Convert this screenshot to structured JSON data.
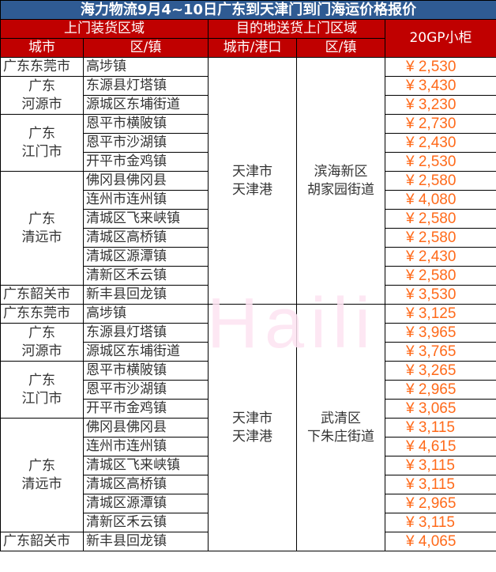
{
  "title": "海力物流9月4~10日广东到天津门到门海运价格报价",
  "headers": {
    "pickup": "上门装货区域",
    "dest": "目的地送货上门区域",
    "price": "20GP小柜",
    "city": "城市",
    "town": "区/镇",
    "city_port": "城市/港口",
    "dest_town": "区/镇"
  },
  "watermark": "Haili",
  "groups": [
    {
      "dest_city": "天津市\n天津港",
      "dest_area": "滨海新区\n胡家园街道",
      "cities": [
        {
          "city": "广东东莞市",
          "towns": [
            {
              "town": "高埗镇",
              "price": "¥ 2,530"
            }
          ]
        },
        {
          "city": "广东\n河源市",
          "towns": [
            {
              "town": "东源县灯塔镇",
              "price": "¥ 3,430"
            },
            {
              "town": "源城区东埔街道",
              "price": "¥ 3,230"
            }
          ]
        },
        {
          "city": "广东\n江门市",
          "towns": [
            {
              "town": "恩平市横陂镇",
              "price": "¥ 2,730"
            },
            {
              "town": "恩平市沙湖镇",
              "price": "¥ 2,430"
            },
            {
              "town": "开平市金鸡镇",
              "price": "¥ 2,530"
            }
          ]
        },
        {
          "city": "广东\n清远市",
          "towns": [
            {
              "town": "佛冈县佛冈县",
              "price": "¥ 2,580"
            },
            {
              "town": "连州市连州镇",
              "price": "¥ 4,080"
            },
            {
              "town": "清城区飞来峡镇",
              "price": "¥ 2,580"
            },
            {
              "town": "清城区高桥镇",
              "price": "¥ 2,580"
            },
            {
              "town": "清城区源潭镇",
              "price": "¥ 2,430"
            },
            {
              "town": "清新区禾云镇",
              "price": "¥ 2,580"
            }
          ]
        },
        {
          "city": "广东韶关市",
          "towns": [
            {
              "town": "新丰县回龙镇",
              "price": "¥ 3,530"
            }
          ]
        }
      ]
    },
    {
      "dest_city": "天津市\n天津港",
      "dest_area": "武清区\n下朱庄街道",
      "cities": [
        {
          "city": "广东东莞市",
          "towns": [
            {
              "town": "高埗镇",
              "price": "¥ 3,125"
            }
          ]
        },
        {
          "city": "广东\n河源市",
          "towns": [
            {
              "town": "东源县灯塔镇",
              "price": "¥ 3,965"
            },
            {
              "town": "源城区东埔街道",
              "price": "¥ 3,765"
            }
          ]
        },
        {
          "city": "广东\n江门市",
          "towns": [
            {
              "town": "恩平市横陂镇",
              "price": "¥ 3,265"
            },
            {
              "town": "恩平市沙湖镇",
              "price": "¥ 2,965"
            },
            {
              "town": "开平市金鸡镇",
              "price": "¥ 3,065"
            }
          ]
        },
        {
          "city": "广东\n清远市",
          "towns": [
            {
              "town": "佛冈县佛冈县",
              "price": "¥ 3,115"
            },
            {
              "town": "连州市连州镇",
              "price": "¥ 4,615"
            },
            {
              "town": "清城区飞来峡镇",
              "price": "¥ 3,115"
            },
            {
              "town": "清城区高桥镇",
              "price": "¥ 3,115"
            },
            {
              "town": "清城区源潭镇",
              "price": "¥ 2,965"
            },
            {
              "town": "清新区禾云镇",
              "price": "¥ 3,115"
            }
          ]
        },
        {
          "city": "广东韶关市",
          "towns": [
            {
              "town": "新丰县回龙镇",
              "price": "¥ 4,065"
            }
          ]
        }
      ]
    }
  ]
}
